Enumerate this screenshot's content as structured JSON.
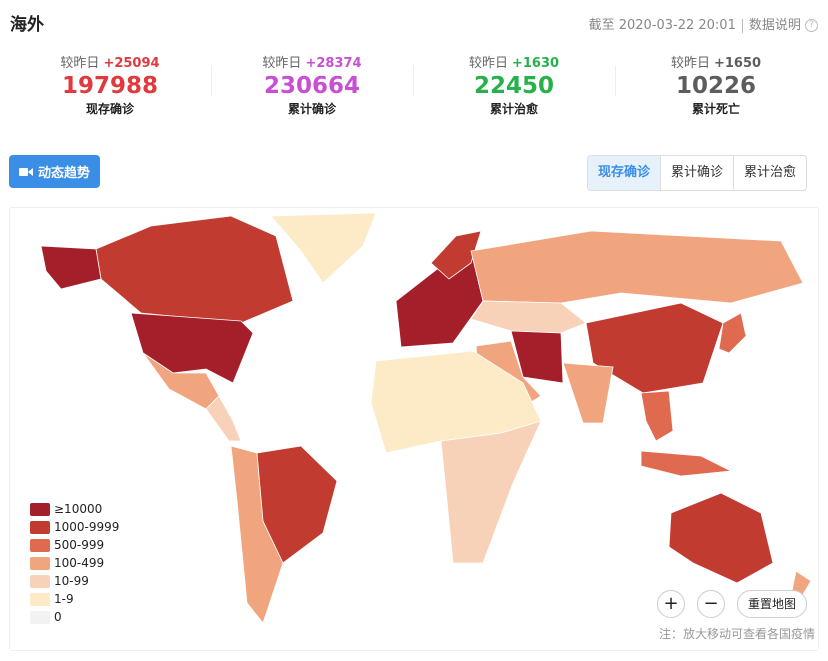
{
  "header": {
    "title": "海外",
    "timestamp": "截至 2020-03-22 20:01",
    "help": "数据说明"
  },
  "stats": [
    {
      "delta_label": "较昨日",
      "delta": "+25094",
      "value": "197988",
      "name": "现存确诊",
      "color": "#e0393e"
    },
    {
      "delta_label": "较昨日",
      "delta": "+28374",
      "value": "230664",
      "name": "累计确诊",
      "color": "#c74fd3"
    },
    {
      "delta_label": "较昨日",
      "delta": "+1630",
      "value": "22450",
      "name": "累计治愈",
      "color": "#28b04b"
    },
    {
      "delta_label": "较昨日",
      "delta": "+1650",
      "value": "10226",
      "name": "累计死亡",
      "color": "#5d5d5d"
    }
  ],
  "trend_button": "动态趋势",
  "tabs": [
    "现存确诊",
    "累计确诊",
    "累计治愈"
  ],
  "legend": [
    {
      "label": "≥10000",
      "color": "#a51f2b"
    },
    {
      "label": "1000-9999",
      "color": "#c23b30"
    },
    {
      "label": "500-999",
      "color": "#e06a4f"
    },
    {
      "label": "100-499",
      "color": "#f0a57e"
    },
    {
      "label": "10-99",
      "color": "#f8d2b8"
    },
    {
      "label": "1-9",
      "color": "#fdebc8"
    },
    {
      "label": "0",
      "color": "#f2f2f2"
    }
  ],
  "zoom_in": "+",
  "zoom_out": "−",
  "reset": "重置地图",
  "note": "注：放大移动可查看各国疫情"
}
